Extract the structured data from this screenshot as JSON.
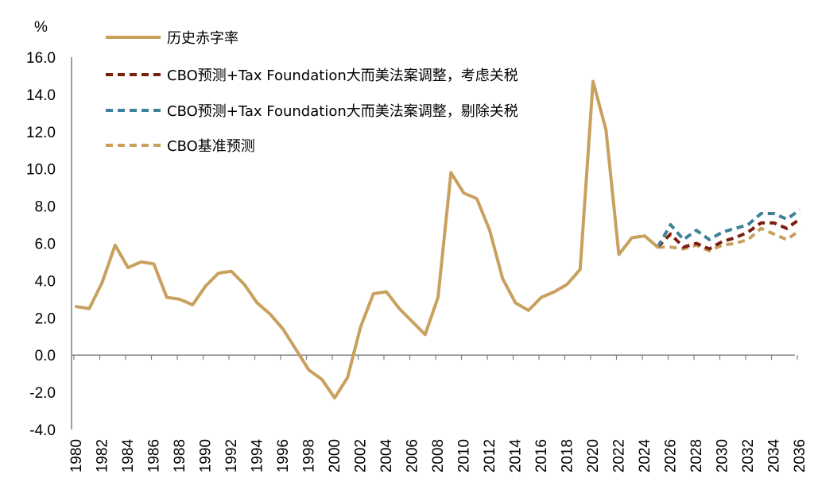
{
  "chart_data": {
    "type": "line",
    "title": "",
    "ylabel": "%",
    "xlabel": "",
    "ylim": [
      -4.0,
      16.0
    ],
    "yticks": [
      "16.0",
      "14.0",
      "12.0",
      "10.0",
      "8.0",
      "6.0",
      "4.0",
      "2.0",
      "0.0",
      "-2.0",
      "-4.0"
    ],
    "xlim": [
      1980,
      2036
    ],
    "xticks": [
      "1980",
      "1982",
      "1984",
      "1986",
      "1988",
      "1990",
      "1992",
      "1994",
      "1996",
      "1998",
      "2000",
      "2002",
      "2004",
      "2006",
      "2008",
      "2010",
      "2012",
      "2014",
      "2016",
      "2018",
      "2020",
      "2022",
      "2024",
      "2026",
      "2028",
      "2030",
      "2032",
      "2034",
      "2036"
    ],
    "grid": false,
    "legend_position": "top-left",
    "series": [
      {
        "name": "历史赤字率",
        "style": "solid",
        "color": "#C8A15E",
        "x": [
          1980,
          1981,
          1982,
          1983,
          1984,
          1985,
          1986,
          1987,
          1988,
          1989,
          1990,
          1991,
          1992,
          1993,
          1994,
          1995,
          1996,
          1997,
          1998,
          1999,
          2000,
          2001,
          2002,
          2003,
          2004,
          2005,
          2006,
          2007,
          2008,
          2009,
          2010,
          2011,
          2012,
          2013,
          2014,
          2015,
          2016,
          2017,
          2018,
          2019,
          2020,
          2021,
          2022,
          2023,
          2024,
          2025
        ],
        "y": [
          2.6,
          2.5,
          3.9,
          5.9,
          4.7,
          5.0,
          4.9,
          3.1,
          3.0,
          2.7,
          3.7,
          4.4,
          4.5,
          3.8,
          2.8,
          2.2,
          1.4,
          0.3,
          -0.8,
          -1.3,
          -2.3,
          -1.2,
          1.5,
          3.3,
          3.4,
          2.5,
          1.8,
          1.1,
          3.1,
          9.8,
          8.7,
          8.4,
          6.7,
          4.1,
          2.8,
          2.4,
          3.1,
          3.4,
          3.8,
          4.6,
          14.7,
          12.1,
          5.4,
          6.3,
          6.4,
          5.8
        ]
      },
      {
        "name": "CBO预测+Tax Foundation大而美法案调整，考虑关税",
        "style": "dashed",
        "color": "#7B1F0F",
        "x": [
          2025,
          2026,
          2027,
          2028,
          2029,
          2030,
          2031,
          2032,
          2033,
          2034,
          2035,
          2036
        ],
        "y": [
          5.8,
          6.5,
          5.8,
          6.0,
          5.7,
          6.1,
          6.3,
          6.6,
          7.1,
          7.1,
          6.8,
          7.3
        ]
      },
      {
        "name": "CBO预测+Tax Foundation大而美法案调整，剔除关税",
        "style": "dashed",
        "color": "#3E8198",
        "x": [
          2025,
          2026,
          2027,
          2028,
          2029,
          2030,
          2031,
          2032,
          2033,
          2034,
          2035,
          2036
        ],
        "y": [
          5.8,
          7.0,
          6.2,
          6.7,
          6.2,
          6.6,
          6.8,
          7.0,
          7.6,
          7.6,
          7.3,
          7.8
        ]
      },
      {
        "name": "CBO基准预测",
        "style": "dashed",
        "color": "#C8A15E",
        "x": [
          2025,
          2026,
          2027,
          2028,
          2029,
          2030,
          2031,
          2032,
          2033,
          2034,
          2035,
          2036
        ],
        "y": [
          5.8,
          5.8,
          5.7,
          5.9,
          5.6,
          5.9,
          6.0,
          6.2,
          6.8,
          6.5,
          6.2,
          6.7
        ]
      }
    ]
  }
}
